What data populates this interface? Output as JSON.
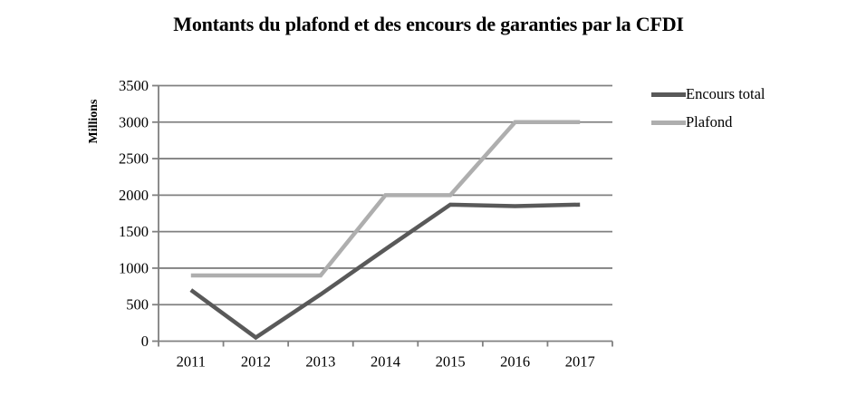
{
  "chart_data": {
    "type": "line",
    "title": "Montants du plafond et des encours de garanties par la CFDI",
    "ylabel": "Millions",
    "xlabel": "",
    "categories": [
      "2011",
      "2012",
      "2013",
      "2014",
      "2015",
      "2016",
      "2017"
    ],
    "series": [
      {
        "name": "Encours total",
        "color": "#595959",
        "values": [
          700,
          50,
          640,
          1260,
          1870,
          1850,
          1870
        ]
      },
      {
        "name": "Plafond",
        "color": "#aeaeae",
        "values": [
          900,
          900,
          900,
          2000,
          2000,
          3000,
          3000
        ]
      }
    ],
    "ylim": [
      0,
      3500
    ],
    "ytick_step": 500,
    "yticks": [
      0,
      500,
      1000,
      1500,
      2000,
      2500,
      3000,
      3500
    ],
    "grid": true,
    "gridline_color": "#808080",
    "axis_color": "#808080",
    "text_color": "#000000",
    "background": "#ffffff",
    "legend_position": "right"
  }
}
